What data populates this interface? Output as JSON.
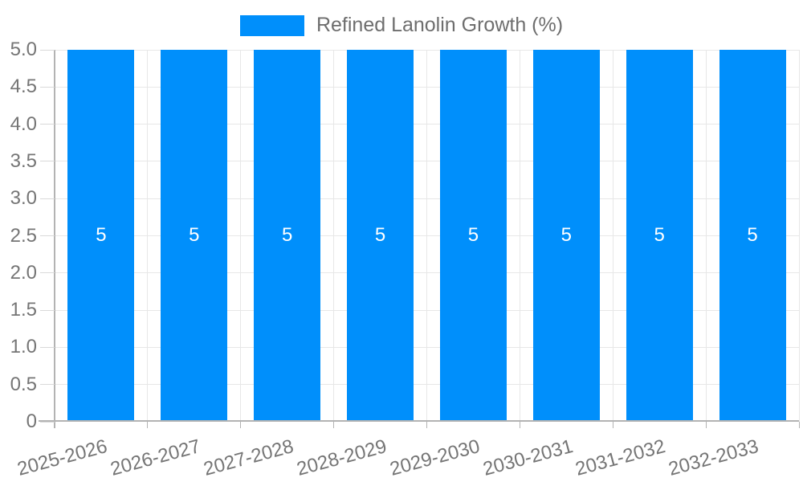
{
  "chart_data": {
    "type": "bar",
    "legend_label": "Refined Lanolin Growth (%)",
    "categories": [
      "2025-2026",
      "2026-2027",
      "2027-2028",
      "2028-2029",
      "2029-2030",
      "2030-2031",
      "2031-2032",
      "2032-2033"
    ],
    "series": [
      {
        "name": "Refined Lanolin Growth (%)",
        "values": [
          5,
          5,
          5,
          5,
          5,
          5,
          5,
          5
        ]
      }
    ],
    "bar_value_labels": [
      "5",
      "5",
      "5",
      "5",
      "5",
      "5",
      "5",
      "5"
    ],
    "ylim": [
      0,
      5
    ],
    "yticks": [
      "0",
      "0.5",
      "1.0",
      "1.5",
      "2.0",
      "2.5",
      "3.0",
      "3.5",
      "4.0",
      "4.5",
      "5.0"
    ],
    "grid": true,
    "legend_position": "top-center",
    "x_label_rotation_deg": -15,
    "colors": {
      "bar": "#008FFB",
      "grid": "#e7e7e7",
      "axis": "#b3b3b3",
      "tick": "#d9d9d9",
      "axis_label": "#757575",
      "legend_text": "#6e6e6e",
      "bar_value": "#ffffff"
    }
  }
}
